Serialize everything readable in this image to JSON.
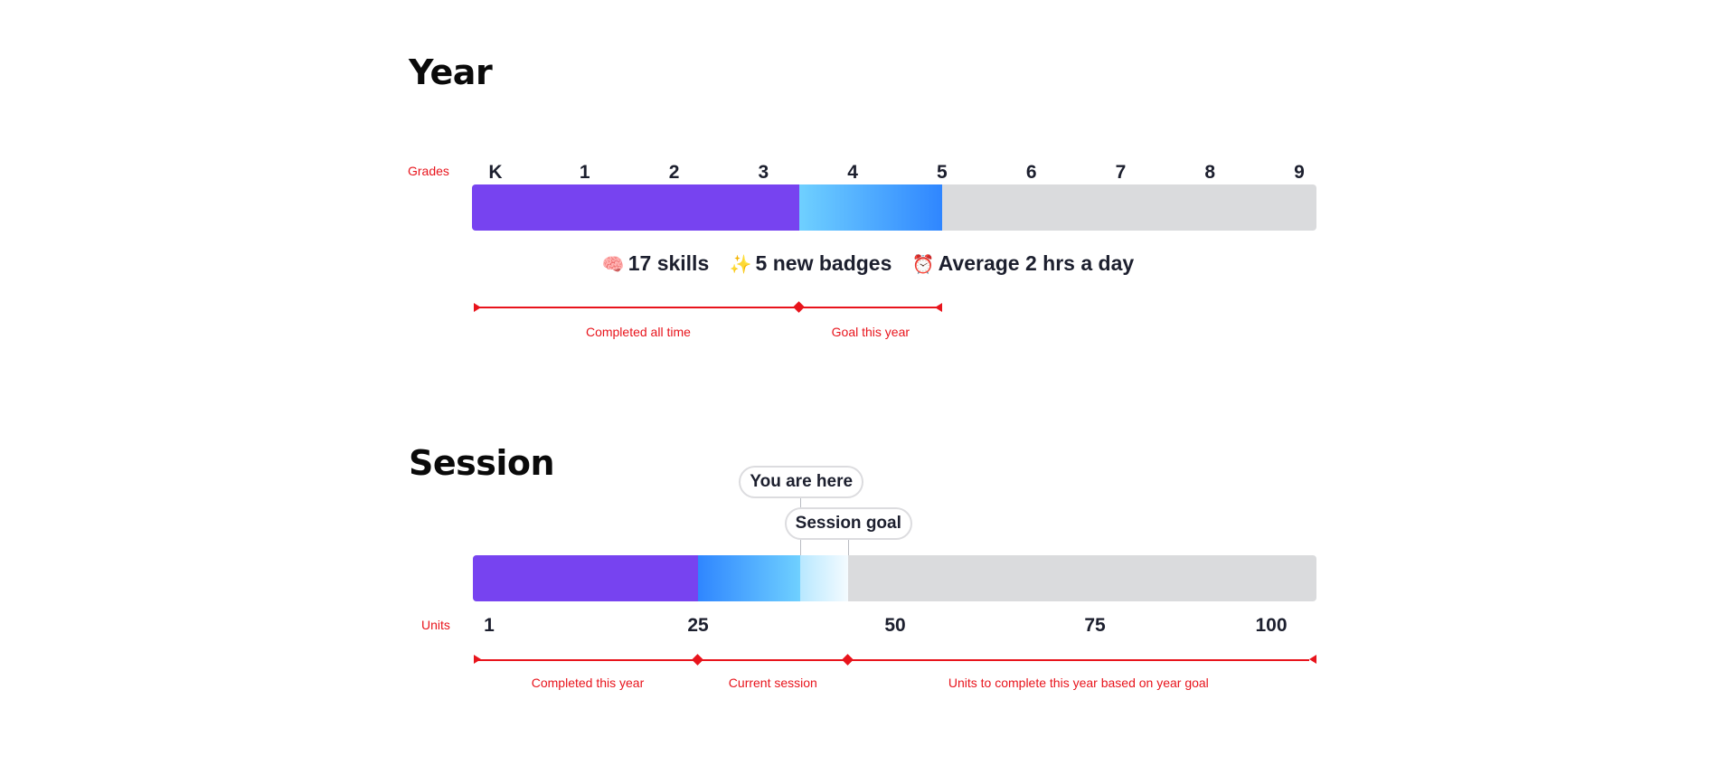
{
  "year": {
    "title": "Year",
    "axis_label": "Grades",
    "grades": [
      "K",
      "1",
      "2",
      "3",
      "4",
      "5",
      "6",
      "7",
      "8",
      "9"
    ],
    "completed_through_grade": 3.4,
    "goal_through_grade": 5,
    "stats": [
      {
        "icon": "brain-icon",
        "glyph": "🧠",
        "text": "17 skills"
      },
      {
        "icon": "sparkles-icon",
        "glyph": "✨",
        "text": "5 new badges"
      },
      {
        "icon": "alarm-clock-icon",
        "glyph": "⏰",
        "text": "Average 2 hrs a day"
      }
    ],
    "annotations": [
      "Completed all time",
      "Goal this year"
    ]
  },
  "session": {
    "title": "Session",
    "axis_label": "Units",
    "units": [
      "1",
      "25",
      "50",
      "75",
      "100"
    ],
    "completed_units": 25,
    "current_units": 38,
    "goal_units": 44,
    "callouts": {
      "here": "You are here",
      "goal": "Session goal"
    },
    "annotations": [
      "Completed this year",
      "Current session",
      "Units to complete this year based on year goal"
    ]
  },
  "colors": {
    "completed": "#7743f0",
    "goal_start": "#6fd0ff",
    "goal_end": "#2f86ff",
    "remaining": "#dadbdd",
    "annotation": "#e8141c"
  }
}
